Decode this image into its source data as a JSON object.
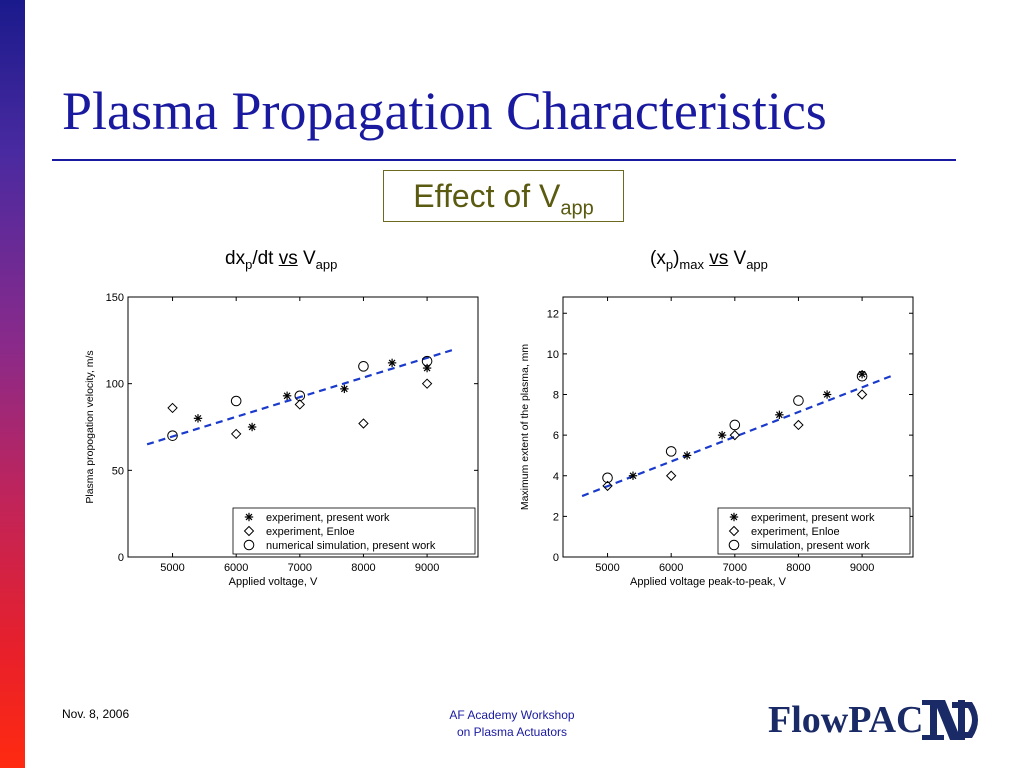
{
  "slide": {
    "title": "Plasma Propagation Characteristics",
    "effect_box": {
      "text": "Effect of V",
      "sub": "app"
    },
    "left_title": {
      "a": "dx",
      "sub1": "p",
      "b": "/dt ",
      "vs": "vs",
      "c": " V",
      "sub2": "app"
    },
    "right_title": {
      "a": "(x",
      "sub1": "p",
      "b": ")",
      "sub_max": "max",
      "gap": " ",
      "vs": "vs",
      "c": " V",
      "sub2": "app"
    },
    "footer_date": "Nov. 8, 2006",
    "footer_center_line1": "AF Academy Workshop",
    "footer_center_line2": "on Plasma Actuators",
    "logo_text": "FlowPAC",
    "accent_color": "#1a1aa0"
  },
  "chart_data": [
    {
      "type": "scatter",
      "title": "",
      "xlabel": "Applied voltage, V",
      "ylabel": "Plasma propogation velocity, m/s",
      "xlim": [
        4300,
        9800
      ],
      "ylim": [
        0,
        150
      ],
      "xticks": [
        5000,
        6000,
        7000,
        8000,
        9000
      ],
      "yticks": [
        0,
        50,
        100,
        150
      ],
      "legend_position": "bottom-right",
      "series": [
        {
          "name": "experiment, present work",
          "marker": "star",
          "points": [
            [
              5400,
              80
            ],
            [
              6250,
              75
            ],
            [
              6800,
              93
            ],
            [
              7700,
              97
            ],
            [
              8450,
              112
            ],
            [
              9000,
              109
            ]
          ]
        },
        {
          "name": "experiment, Enloe",
          "marker": "diamond",
          "points": [
            [
              5000,
              86
            ],
            [
              6000,
              71
            ],
            [
              7000,
              88
            ],
            [
              8000,
              77
            ],
            [
              9000,
              100
            ]
          ]
        },
        {
          "name": "numerical simulation, present work",
          "marker": "circle",
          "points": [
            [
              5000,
              70
            ],
            [
              6000,
              90
            ],
            [
              7000,
              93
            ],
            [
              8000,
              110
            ],
            [
              9000,
              113
            ]
          ]
        }
      ],
      "fit_line": {
        "style": "dashed",
        "color": "#1a3acc",
        "points": [
          [
            4600,
            65
          ],
          [
            9450,
            120
          ]
        ]
      }
    },
    {
      "type": "scatter",
      "title": "",
      "xlabel": "Applied voltage peak-to-peak, V",
      "ylabel": "Maximum extent of the plasma, mm",
      "xlim": [
        4300,
        9800
      ],
      "ylim": [
        0,
        12.8
      ],
      "xticks": [
        5000,
        6000,
        7000,
        8000,
        9000
      ],
      "yticks": [
        0,
        2,
        4,
        6,
        8,
        10,
        12
      ],
      "legend_position": "bottom-right",
      "series": [
        {
          "name": "experiment, present work",
          "marker": "star",
          "points": [
            [
              5400,
              4
            ],
            [
              6250,
              5
            ],
            [
              6800,
              6
            ],
            [
              7700,
              7
            ],
            [
              8450,
              8
            ],
            [
              9000,
              9
            ]
          ]
        },
        {
          "name": "experiment, Enloe",
          "marker": "diamond",
          "points": [
            [
              5000,
              3.5
            ],
            [
              6000,
              4
            ],
            [
              7000,
              6
            ],
            [
              8000,
              6.5
            ],
            [
              9000,
              8
            ]
          ]
        },
        {
          "name": "simulation, present work",
          "marker": "circle",
          "points": [
            [
              5000,
              3.9
            ],
            [
              6000,
              5.2
            ],
            [
              7000,
              6.5
            ],
            [
              8000,
              7.7
            ],
            [
              9000,
              8.9
            ]
          ]
        }
      ],
      "fit_line": {
        "style": "dashed",
        "color": "#1a3acc",
        "points": [
          [
            4600,
            3
          ],
          [
            9450,
            8.9
          ]
        ]
      }
    }
  ]
}
